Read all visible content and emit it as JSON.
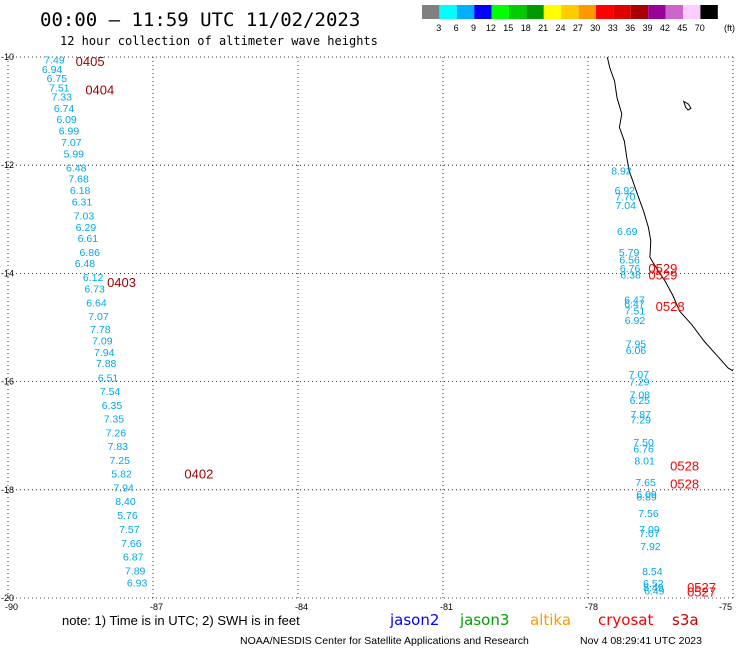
{
  "header": {
    "title": "00:00 — 11:59 UTC 11/02/2023",
    "subtitle": "12 hour collection of altimeter wave heights"
  },
  "colors": {
    "jason2": "#0000ff",
    "jason3": "#00a000",
    "altika": "#ff9900",
    "cryosat": "#ff0000",
    "s3a": "#cc0000",
    "value_text": "#00a8e8",
    "time_dark": "#990000",
    "time_red": "#ff0000",
    "coast": "#000000"
  },
  "legend": {
    "unit": "(ft)",
    "bins": [
      {
        "label": "3",
        "color": "#808080"
      },
      {
        "label": "6",
        "color": "#00ffff"
      },
      {
        "label": "9",
        "color": "#00b0ff"
      },
      {
        "label": "12",
        "color": "#0000ff"
      },
      {
        "label": "15",
        "color": "#00ff00"
      },
      {
        "label": "18",
        "color": "#00cc00"
      },
      {
        "label": "21",
        "color": "#009900"
      },
      {
        "label": "24",
        "color": "#ffff00"
      },
      {
        "label": "27",
        "color": "#ffcc00"
      },
      {
        "label": "30",
        "color": "#ff9900"
      },
      {
        "label": "33",
        "color": "#ff0000"
      },
      {
        "label": "36",
        "color": "#dd0000"
      },
      {
        "label": "39",
        "color": "#aa0000"
      },
      {
        "label": "42",
        "color": "#990099"
      },
      {
        "label": "45",
        "color": "#cc66cc"
      },
      {
        "label": "70",
        "color": "#ffccff"
      },
      {
        "label": "",
        "color": "#000000"
      }
    ]
  },
  "map": {
    "lon_min": -90,
    "lon_max": -75,
    "lat_min": -20,
    "lat_max": -10,
    "lon_ticks": [
      "-90",
      "-87",
      "-84",
      "-81",
      "-78",
      "-75"
    ],
    "lat_ticks": [
      "-10",
      "-12",
      "-14",
      "-16",
      "-18",
      "-20"
    ],
    "grid": "dotted"
  },
  "tracks": {
    "west": [
      {
        "lon": -89.25,
        "lat": -10.05,
        "v": "7.49"
      },
      {
        "lon": -89.3,
        "lat": -10.22,
        "v": "6.94"
      },
      {
        "lon": -89.2,
        "lat": -10.39,
        "v": "6.75"
      },
      {
        "lon": -89.15,
        "lat": -10.56,
        "v": "7.51"
      },
      {
        "lon": -89.1,
        "lat": -10.73,
        "v": "7.33"
      },
      {
        "lon": -89.05,
        "lat": -10.94,
        "v": "6.74"
      },
      {
        "lon": -89.0,
        "lat": -11.15,
        "v": "6.09"
      },
      {
        "lon": -88.95,
        "lat": -11.36,
        "v": "6.99"
      },
      {
        "lon": -88.9,
        "lat": -11.57,
        "v": "7.07"
      },
      {
        "lon": -88.85,
        "lat": -11.78,
        "v": "5.99"
      },
      {
        "lon": -88.8,
        "lat": -12.04,
        "v": "6.48"
      },
      {
        "lon": -88.75,
        "lat": -12.25,
        "v": "7.68"
      },
      {
        "lon": -88.72,
        "lat": -12.46,
        "v": "6.18"
      },
      {
        "lon": -88.68,
        "lat": -12.67,
        "v": "6.31"
      },
      {
        "lon": -88.64,
        "lat": -12.93,
        "v": "7.03"
      },
      {
        "lon": -88.6,
        "lat": -13.14,
        "v": "6.29"
      },
      {
        "lon": -88.56,
        "lat": -13.35,
        "v": "6.61"
      },
      {
        "lon": -88.52,
        "lat": -13.6,
        "v": "6.86"
      },
      {
        "lon": -88.62,
        "lat": -13.81,
        "v": "6.48"
      },
      {
        "lon": -88.45,
        "lat": -14.07,
        "v": "6.12"
      },
      {
        "lon": -88.42,
        "lat": -14.28,
        "v": "6.73"
      },
      {
        "lon": -88.38,
        "lat": -14.54,
        "v": "6.64"
      },
      {
        "lon": -88.34,
        "lat": -14.79,
        "v": "7.07"
      },
      {
        "lon": -88.3,
        "lat": -15.03,
        "v": "7.78"
      },
      {
        "lon": -88.26,
        "lat": -15.24,
        "v": "7.09"
      },
      {
        "lon": -88.22,
        "lat": -15.45,
        "v": "7.94"
      },
      {
        "lon": -88.18,
        "lat": -15.66,
        "v": "7.88"
      },
      {
        "lon": -88.14,
        "lat": -15.92,
        "v": "6.51"
      },
      {
        "lon": -88.1,
        "lat": -16.17,
        "v": "7.54"
      },
      {
        "lon": -88.06,
        "lat": -16.43,
        "v": "6.35"
      },
      {
        "lon": -88.02,
        "lat": -16.68,
        "v": "7.35"
      },
      {
        "lon": -87.98,
        "lat": -16.94,
        "v": "7.26"
      },
      {
        "lon": -87.94,
        "lat": -17.19,
        "v": "7.83"
      },
      {
        "lon": -87.9,
        "lat": -17.45,
        "v": "7.25"
      },
      {
        "lon": -87.86,
        "lat": -17.7,
        "v": "5.82"
      },
      {
        "lon": -87.82,
        "lat": -17.96,
        "v": "7.94"
      },
      {
        "lon": -87.78,
        "lat": -18.21,
        "v": "8.40"
      },
      {
        "lon": -87.74,
        "lat": -18.47,
        "v": "5.76"
      },
      {
        "lon": -87.7,
        "lat": -18.72,
        "v": "7.57"
      },
      {
        "lon": -87.66,
        "lat": -18.98,
        "v": "7.66"
      },
      {
        "lon": -87.62,
        "lat": -19.23,
        "v": "6.87"
      },
      {
        "lon": -87.58,
        "lat": -19.49,
        "v": "7.89"
      },
      {
        "lon": -87.54,
        "lat": -19.71,
        "v": "6.93"
      }
    ],
    "east": [
      {
        "lon": -77.52,
        "lat": -12.1,
        "v": "8.92"
      },
      {
        "lon": -77.45,
        "lat": -12.46,
        "v": "6.92"
      },
      {
        "lon": -77.44,
        "lat": -12.58,
        "v": "7.70"
      },
      {
        "lon": -77.43,
        "lat": -12.74,
        "v": "7.04"
      },
      {
        "lon": -77.4,
        "lat": -13.22,
        "v": "6.69"
      },
      {
        "lon": -77.36,
        "lat": -13.6,
        "v": "5.79"
      },
      {
        "lon": -77.35,
        "lat": -13.74,
        "v": "6.56"
      },
      {
        "lon": -77.34,
        "lat": -13.9,
        "v": "6.76"
      },
      {
        "lon": -77.33,
        "lat": -14.02,
        "v": "6.38"
      },
      {
        "lon": -77.25,
        "lat": -14.48,
        "v": "6.47"
      },
      {
        "lon": -77.25,
        "lat": -14.56,
        "v": "6.47"
      },
      {
        "lon": -77.24,
        "lat": -14.69,
        "v": "7.51"
      },
      {
        "lon": -77.24,
        "lat": -14.86,
        "v": "6.92"
      },
      {
        "lon": -77.22,
        "lat": -15.3,
        "v": "7.95"
      },
      {
        "lon": -77.22,
        "lat": -15.42,
        "v": "6.06"
      },
      {
        "lon": -77.16,
        "lat": -15.86,
        "v": "7.07"
      },
      {
        "lon": -77.15,
        "lat": -16.0,
        "v": "7.29"
      },
      {
        "lon": -77.14,
        "lat": -16.24,
        "v": "7.08"
      },
      {
        "lon": -77.14,
        "lat": -16.34,
        "v": "6.25"
      },
      {
        "lon": -77.12,
        "lat": -16.6,
        "v": "7.87"
      },
      {
        "lon": -77.12,
        "lat": -16.7,
        "v": "7.29"
      },
      {
        "lon": -77.06,
        "lat": -17.12,
        "v": "7.50"
      },
      {
        "lon": -77.06,
        "lat": -17.24,
        "v": "6.76"
      },
      {
        "lon": -77.04,
        "lat": -17.46,
        "v": "8.01"
      },
      {
        "lon": -77.02,
        "lat": -17.86,
        "v": "7.65"
      },
      {
        "lon": -77.0,
        "lat": -18.08,
        "v": "6.09"
      },
      {
        "lon": -77.0,
        "lat": -18.12,
        "v": "6.89"
      },
      {
        "lon": -76.96,
        "lat": -18.43,
        "v": "7.56"
      },
      {
        "lon": -76.94,
        "lat": -18.72,
        "v": "7.09"
      },
      {
        "lon": -76.94,
        "lat": -18.8,
        "v": "7.07"
      },
      {
        "lon": -76.92,
        "lat": -19.04,
        "v": "7.92"
      },
      {
        "lon": -76.88,
        "lat": -19.5,
        "v": "8.54"
      },
      {
        "lon": -76.86,
        "lat": -19.72,
        "v": "6.52"
      },
      {
        "lon": -76.86,
        "lat": -19.8,
        "v": "8.49"
      },
      {
        "lon": -76.84,
        "lat": -19.86,
        "v": "6.49"
      }
    ]
  },
  "time_labels": [
    {
      "lon": -88.6,
      "lat": -10.07,
      "t": "0405",
      "c": "dark"
    },
    {
      "lon": -88.4,
      "lat": -10.6,
      "t": "0404",
      "c": "dark"
    },
    {
      "lon": -87.95,
      "lat": -14.16,
      "t": "0403",
      "c": "dark"
    },
    {
      "lon": -86.35,
      "lat": -17.7,
      "t": "0402",
      "c": "dark"
    },
    {
      "lon": -76.75,
      "lat": -13.9,
      "t": "0529",
      "c": "red"
    },
    {
      "lon": -76.75,
      "lat": -14.02,
      "t": "0529",
      "c": "red"
    },
    {
      "lon": -76.6,
      "lat": -14.6,
      "t": "0528",
      "c": "red"
    },
    {
      "lon": -76.3,
      "lat": -17.55,
      "t": "0528",
      "c": "red"
    },
    {
      "lon": -76.3,
      "lat": -17.88,
      "t": "0528",
      "c": "red"
    },
    {
      "lon": -75.95,
      "lat": -19.8,
      "t": "0527",
      "c": "red"
    },
    {
      "lon": -75.95,
      "lat": -19.88,
      "t": "0527",
      "c": "red"
    }
  ],
  "coast": [
    [
      -77.6,
      -10.0
    ],
    [
      -77.55,
      -10.2
    ],
    [
      -77.45,
      -10.45
    ],
    [
      -77.4,
      -10.75
    ],
    [
      -77.3,
      -11.05
    ],
    [
      -77.35,
      -11.3
    ],
    [
      -77.25,
      -11.55
    ],
    [
      -77.2,
      -11.85
    ],
    [
      -77.15,
      -12.1
    ],
    [
      -77.05,
      -12.35
    ],
    [
      -76.95,
      -12.6
    ],
    [
      -76.85,
      -12.85
    ],
    [
      -76.75,
      -13.15
    ],
    [
      -76.7,
      -13.4
    ],
    [
      -76.72,
      -13.7
    ],
    [
      -76.55,
      -13.95
    ],
    [
      -76.4,
      -14.15
    ],
    [
      -76.25,
      -14.4
    ],
    [
      -76.1,
      -14.7
    ],
    [
      -75.85,
      -14.95
    ],
    [
      -75.6,
      -15.25
    ],
    [
      -75.35,
      -15.5
    ],
    [
      -75.1,
      -15.75
    ],
    [
      -75.0,
      -15.8
    ]
  ],
  "island": [
    [
      -76.02,
      -10.82
    ],
    [
      -75.92,
      -10.87
    ],
    [
      -75.87,
      -10.95
    ],
    [
      -75.93,
      -10.98
    ],
    [
      -75.98,
      -10.93
    ]
  ],
  "footer": {
    "note": "note:  1) Time is in UTC; 2) SWH is in feet",
    "satellites": {
      "jason2": "jason2",
      "jason3": "jason3",
      "altika": "altika",
      "cryosat": "cryosat",
      "s3a": "s3a"
    },
    "credit": "NOAA/NESDIS Center for Satellite Applications and Research",
    "timestamp": "Nov  4 08:29:41 UTC 2023"
  }
}
